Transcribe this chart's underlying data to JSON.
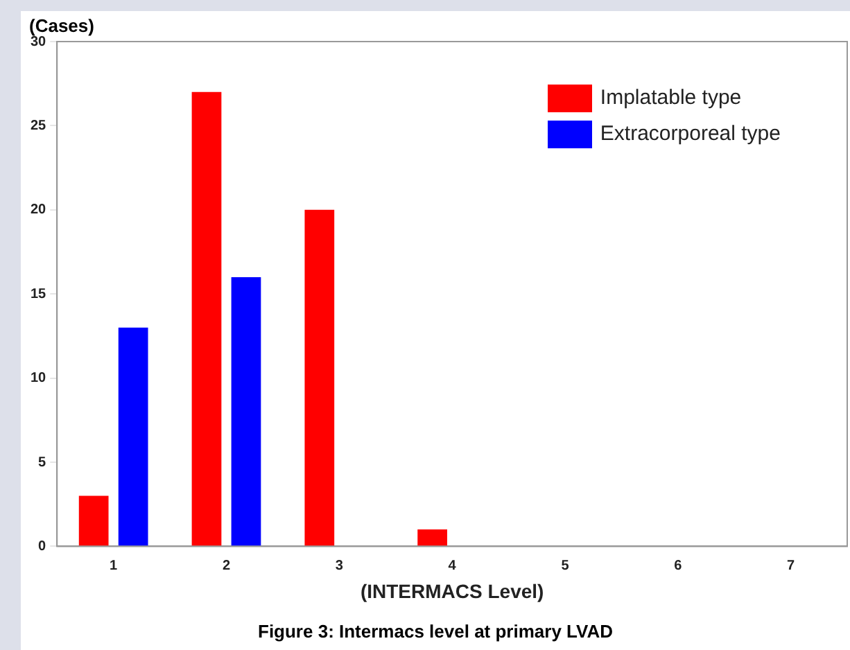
{
  "chart_data": {
    "type": "bar",
    "ylabel": "(Cases)",
    "xlabel": "(INTERMACS Level)",
    "categories": [
      "1",
      "2",
      "3",
      "4",
      "5",
      "6",
      "7"
    ],
    "series": [
      {
        "name": "Implatable type",
        "color": "#ff0000",
        "values": [
          3,
          27,
          20,
          1,
          0,
          0,
          0
        ]
      },
      {
        "name": "Extracorporeal type",
        "color": "#0000ff",
        "values": [
          13,
          16,
          0,
          0,
          0,
          0,
          0
        ]
      }
    ],
    "ylim": [
      0,
      30
    ],
    "yticks": [
      0,
      5,
      10,
      15,
      20,
      25,
      30
    ],
    "grid": false,
    "legend": "top right",
    "annotations": [
      "Figure 3: Intermacs level at primary LVAD"
    ]
  }
}
